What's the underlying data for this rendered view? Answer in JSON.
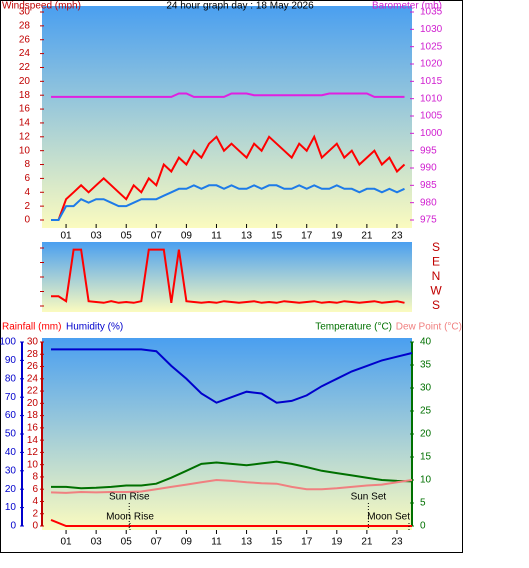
{
  "chart_data": [
    {
      "type": "line",
      "title": "24 hour graph day : 18 May 2026",
      "ylabel": "Windspeed (mph)",
      "y2label": "Barometer (mb)",
      "x": [
        0,
        0.5,
        1,
        1.5,
        2,
        2.5,
        3,
        3.5,
        4,
        4.5,
        5,
        5.5,
        6,
        6.5,
        7,
        7.5,
        8,
        8.5,
        9,
        9.5,
        10,
        10.5,
        11,
        11.5,
        12,
        12.5,
        13,
        13.5,
        14,
        14.5,
        15,
        15.5,
        16,
        16.5,
        17,
        17.5,
        18,
        18.5,
        19,
        19.5,
        20,
        20.5,
        21,
        21.5,
        22,
        22.5,
        23,
        23.5
      ],
      "xlim": [
        -0.6,
        24
      ],
      "xticks": [
        {
          "value": 1,
          "label": "01"
        },
        {
          "value": 3,
          "label": "03"
        },
        {
          "value": 5,
          "label": "05"
        },
        {
          "value": 7,
          "label": "07"
        },
        {
          "value": 9,
          "label": "09"
        },
        {
          "value": 11,
          "label": "11"
        },
        {
          "value": 13,
          "label": "13"
        },
        {
          "value": 15,
          "label": "15"
        },
        {
          "value": 17,
          "label": "17"
        },
        {
          "value": 19,
          "label": "19"
        },
        {
          "value": 21,
          "label": "21"
        },
        {
          "value": 23,
          "label": "23"
        }
      ],
      "ylim": [
        0,
        30
      ],
      "yticks": [
        0,
        2,
        4,
        6,
        8,
        10,
        12,
        14,
        16,
        18,
        20,
        22,
        24,
        26,
        28,
        30
      ],
      "y2lim": [
        975,
        1035
      ],
      "y2ticks": [
        975,
        980,
        985,
        990,
        995,
        1000,
        1005,
        1010,
        1015,
        1020,
        1025,
        1030,
        1035
      ],
      "series": [
        {
          "color": "#ff0000",
          "values": [
            0,
            0,
            3,
            4,
            5,
            4,
            5,
            6,
            5,
            4,
            3,
            5,
            4,
            6,
            5,
            8,
            7,
            9,
            8,
            10,
            9,
            11,
            12,
            10,
            11,
            10,
            9,
            11,
            10,
            12,
            11,
            10,
            9,
            11,
            10,
            12,
            9,
            10,
            11,
            9,
            10,
            8,
            9,
            10,
            8,
            9,
            7,
            8
          ]
        },
        {
          "color": "#1e7be8",
          "values": [
            0,
            0,
            2,
            2,
            3,
            2.5,
            3,
            3,
            2.5,
            2,
            2,
            2.5,
            3,
            3,
            3,
            3.5,
            4,
            4.5,
            4.5,
            5,
            4.5,
            5,
            5,
            4.5,
            5,
            4.5,
            4.5,
            5,
            4.5,
            5,
            5,
            4.5,
            4.5,
            5,
            4.5,
            5,
            4.5,
            4.5,
            5,
            4.5,
            4.5,
            4,
            4.5,
            4.5,
            4,
            4.5,
            4,
            4.5
          ]
        },
        {
          "color": "#e020e0",
          "axis": "y2",
          "values": [
            1010.5,
            1010.5,
            1010.5,
            1010.5,
            1010.5,
            1010.5,
            1010.5,
            1010.5,
            1010.5,
            1010.5,
            1010.5,
            1010.5,
            1010.5,
            1010.5,
            1010.5,
            1010.5,
            1010.5,
            1011.5,
            1011.5,
            1010.5,
            1010.5,
            1010.5,
            1010.5,
            1010.5,
            1011.5,
            1011.5,
            1011.5,
            1011,
            1011,
            1011,
            1011,
            1011,
            1011,
            1011,
            1011,
            1011,
            1011,
            1011.5,
            1011.5,
            1011.5,
            1011.5,
            1011.5,
            1011.5,
            1010.5,
            1010.5,
            1010.5,
            1010.5,
            1010.5
          ]
        }
      ]
    },
    {
      "type": "line",
      "x": [
        0,
        0.5,
        1,
        1.5,
        2,
        2.5,
        3,
        3.5,
        4,
        4.5,
        5,
        5.5,
        6,
        6.5,
        7,
        7.5,
        8,
        8.5,
        9,
        9.5,
        10,
        10.5,
        11,
        11.5,
        12,
        12.5,
        13,
        13.5,
        14,
        14.5,
        15,
        15.5,
        16,
        16.5,
        17,
        17.5,
        18,
        18.5,
        19,
        19.5,
        20,
        20.5,
        21,
        21.5,
        22,
        22.5,
        23,
        23.5
      ],
      "xlim": [
        -0.6,
        24
      ],
      "ylim": [
        -180,
        180
      ],
      "yticks": [
        {
          "value": 180,
          "label": "S"
        },
        {
          "value": 90,
          "label": "E"
        },
        {
          "value": 0,
          "label": "N"
        },
        {
          "value": -90,
          "label": "W"
        },
        {
          "value": -180,
          "label": "S"
        }
      ],
      "series": [
        {
          "color": "#ff0000",
          "values": [
            -120,
            -120,
            -150,
            170,
            170,
            -150,
            -155,
            -160,
            -150,
            -160,
            -155,
            -160,
            -150,
            170,
            170,
            170,
            -160,
            170,
            -150,
            -155,
            -160,
            -155,
            -160,
            -150,
            -155,
            -160,
            -155,
            -150,
            -160,
            -155,
            -160,
            -150,
            -155,
            -160,
            -155,
            -150,
            -160,
            -155,
            -160,
            -150,
            -155,
            -160,
            -155,
            -150,
            -160,
            -155,
            -150,
            -160
          ]
        }
      ]
    },
    {
      "type": "line",
      "x": [
        0,
        1,
        2,
        3,
        4,
        5,
        6,
        7,
        8,
        9,
        10,
        11,
        12,
        13,
        14,
        15,
        16,
        17,
        18,
        19,
        20,
        21,
        22,
        23,
        24
      ],
      "xlim": [
        -0.6,
        24
      ],
      "xticks": [
        {
          "value": 1,
          "label": "01"
        },
        {
          "value": 3,
          "label": "03"
        },
        {
          "value": 5,
          "label": "05"
        },
        {
          "value": 7,
          "label": "07"
        },
        {
          "value": 9,
          "label": "09"
        },
        {
          "value": 11,
          "label": "11"
        },
        {
          "value": 13,
          "label": "13"
        },
        {
          "value": 15,
          "label": "15"
        },
        {
          "value": 17,
          "label": "17"
        },
        {
          "value": 19,
          "label": "19"
        },
        {
          "value": 21,
          "label": "21"
        },
        {
          "value": 23,
          "label": "23"
        }
      ],
      "ylim": [
        0,
        100
      ],
      "yticks": [
        0,
        10,
        20,
        30,
        40,
        50,
        60,
        70,
        80,
        90,
        100
      ],
      "y2lim": [
        0,
        40
      ],
      "y2ticks": [
        0,
        5,
        10,
        15,
        20,
        25,
        30,
        35,
        40
      ],
      "y3lim": [
        0,
        30
      ],
      "y3ticks": [
        0,
        2,
        4,
        6,
        8,
        10,
        12,
        14,
        16,
        18,
        20,
        22,
        24,
        26,
        28,
        30
      ],
      "series": [
        {
          "name": "Rainfall (mm)",
          "color": "#ff0000",
          "axis": "y3",
          "values": [
            1,
            0,
            0,
            0,
            0,
            0,
            0,
            0,
            0,
            0,
            0,
            0,
            0,
            0,
            0,
            0,
            0,
            0,
            0,
            0,
            0,
            0,
            0,
            0,
            0
          ]
        },
        {
          "name": "Humidity (%)",
          "color": "#0000cc",
          "values": [
            96,
            96,
            96,
            96,
            96,
            96,
            96,
            95,
            87,
            80,
            72,
            67,
            70,
            73,
            72,
            67,
            68,
            71,
            76,
            80,
            84,
            87,
            90,
            92,
            94
          ]
        },
        {
          "name": "Temperature (°C)",
          "color": "#007000",
          "axis": "y2",
          "values": [
            8.5,
            8.5,
            8.2,
            8.3,
            8.5,
            8.8,
            8.8,
            9.2,
            10.5,
            12,
            13.5,
            13.8,
            13.5,
            13.2,
            13.6,
            14,
            13.5,
            12.8,
            12,
            11.5,
            11,
            10.5,
            10,
            9.8,
            9.7
          ]
        },
        {
          "name": "Dew Point (°C)",
          "color": "#f08080",
          "axis": "y2",
          "values": [
            7.3,
            7.2,
            7.4,
            7.3,
            7.4,
            7.4,
            7.5,
            8,
            8.5,
            9,
            9.5,
            10,
            9.8,
            9.5,
            9.3,
            9.2,
            8.5,
            8,
            8,
            8.2,
            8.5,
            8.8,
            9,
            9.5,
            10
          ]
        }
      ],
      "annotations": [
        {
          "text": "Sun Rise",
          "x": 5.2
        },
        {
          "text": "Sun Set",
          "x": 21.1
        },
        {
          "text": "Moon Rise",
          "x": 5.25
        },
        {
          "text": "Moon Set",
          "x": 23.8
        }
      ]
    }
  ]
}
